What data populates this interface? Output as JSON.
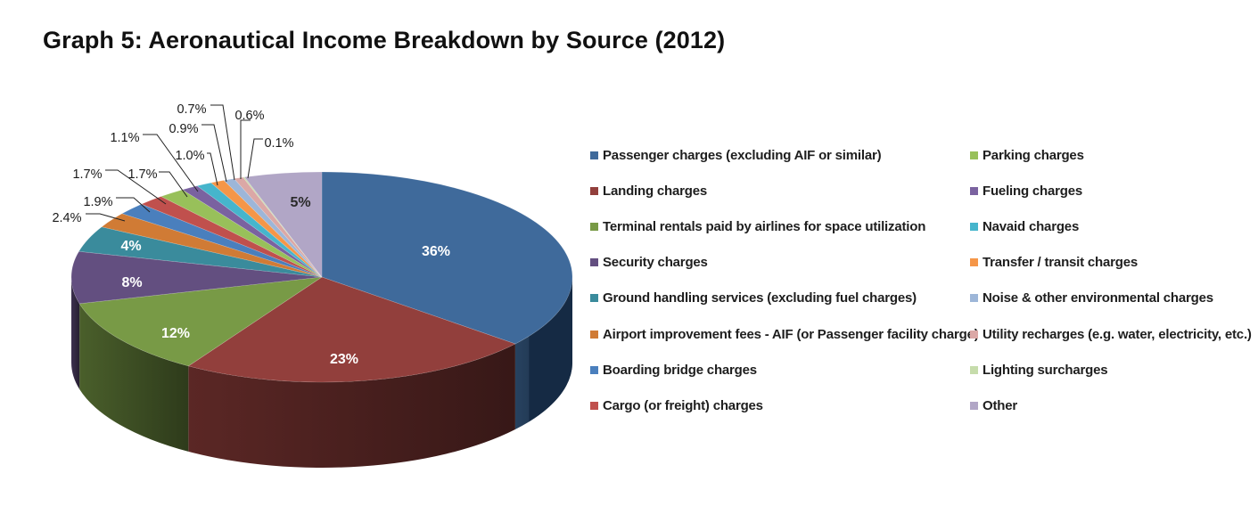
{
  "title": "Graph 5: Aeronautical Income Breakdown by Source (2012)",
  "chart_data": {
    "type": "pie",
    "title": "Graph 5: Aeronautical Income Breakdown by Source (2012)",
    "legend_position": "right",
    "unit": "%",
    "slices": [
      {
        "name": "Passenger charges (excluding AIF or similar)",
        "value": 36,
        "label": "36%",
        "color": "#3f6a9b"
      },
      {
        "name": "Landing charges",
        "value": 23,
        "label": "23%",
        "color": "#923f3c"
      },
      {
        "name": "Terminal rentals paid by airlines for space utilization",
        "value": 12,
        "label": "12%",
        "color": "#789a46"
      },
      {
        "name": "Security charges",
        "value": 8,
        "label": "8%",
        "color": "#634f80"
      },
      {
        "name": "Ground handling services (excluding fuel charges)",
        "value": 4,
        "label": "4%",
        "color": "#3a8b9c"
      },
      {
        "name": "Airport improvement fees - AIF (or Passenger facility charge)",
        "value": 2.4,
        "label": "2.4%",
        "color": "#d07b35"
      },
      {
        "name": "Boarding bridge charges",
        "value": 1.9,
        "label": "1.9%",
        "color": "#4a7fbd"
      },
      {
        "name": "Cargo (or freight) charges",
        "value": 1.7,
        "label": "1.7%",
        "color": "#c0504d"
      },
      {
        "name": "Parking charges",
        "value": 1.7,
        "label": "1.7%",
        "color": "#98c05a"
      },
      {
        "name": "Fueling charges",
        "value": 1.1,
        "label": "1.1%",
        "color": "#7a62a0"
      },
      {
        "name": "Navaid charges",
        "value": 1.0,
        "label": "1.0%",
        "color": "#46b5cc"
      },
      {
        "name": "Transfer / transit charges",
        "value": 0.9,
        "label": "0.9%",
        "color": "#f59648"
      },
      {
        "name": "Noise & other environmental charges",
        "value": 0.7,
        "label": "0.7%",
        "color": "#9db6d8"
      },
      {
        "name": "Utility recharges (e.g. water, electricity, etc.)",
        "value": 0.6,
        "label": "0.6%",
        "color": "#dba8a6"
      },
      {
        "name": "Lighting surcharges",
        "value": 0.1,
        "label": "0.1%",
        "color": "#c6dcab"
      },
      {
        "name": "Other",
        "value": 5,
        "label": "5%",
        "color": "#b1a6c6"
      }
    ]
  },
  "legend": {
    "columns": [
      [
        "Passenger charges (excluding AIF or similar)",
        "Landing charges",
        "Terminal rentals paid by airlines for space utilization",
        "Security charges",
        "Ground handling services (excluding fuel charges)",
        "Airport improvement fees - AIF (or Passenger facility charge)",
        "Boarding bridge charges",
        "Cargo (or freight) charges"
      ],
      [
        "Parking charges",
        "Fueling charges",
        "Navaid charges",
        "Transfer / transit charges",
        "Noise & other environmental charges",
        "Utility recharges (e.g. water, electricity, etc.)",
        "Lighting surcharges",
        "Other"
      ]
    ]
  }
}
